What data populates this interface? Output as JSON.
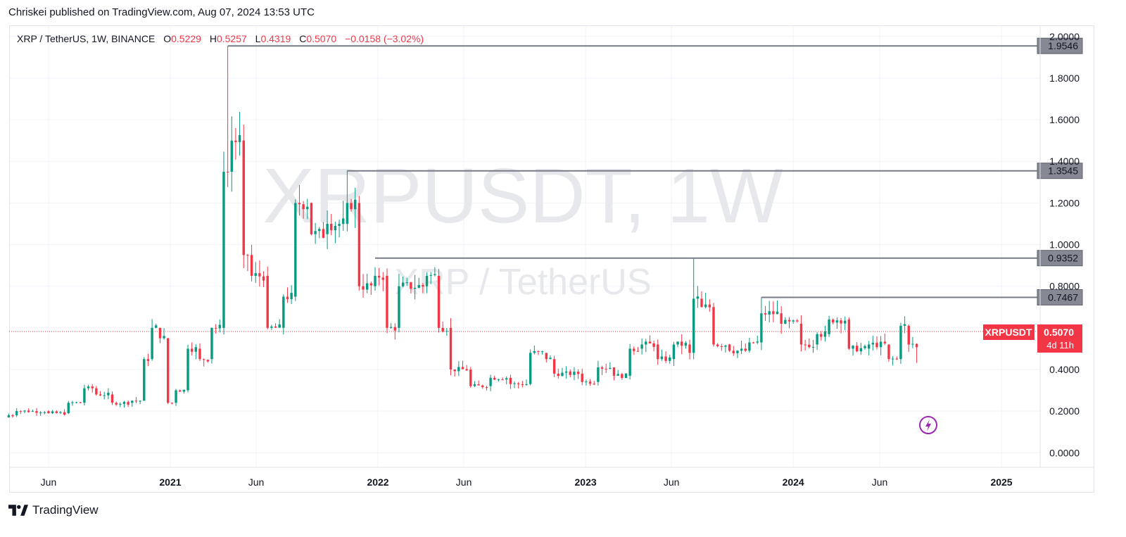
{
  "header": {
    "publisher_line": "Chriskei published on TradingView.com, Aug 07, 2024 13:53 UTC"
  },
  "legend": {
    "symbol": "XRP / TetherUS, 1W, BINANCE",
    "open_label": "O",
    "open_value": "0.5229",
    "high_label": "H",
    "high_value": "0.5257",
    "low_label": "L",
    "low_value": "0.4319",
    "close_label": "C",
    "close_value": "0.5070",
    "change": "−0.0158 (−3.02%)"
  },
  "watermark": {
    "main": "XRPUSDT, 1W",
    "sub": "XRP / TetherUS"
  },
  "price_tag": {
    "symbol": "XRPUSDT",
    "price": "0.5070",
    "countdown": "4d 11h"
  },
  "footer": {
    "brand": "TradingView"
  },
  "colors": {
    "up": "#089981",
    "down": "#f23645",
    "level_line": "#787b86",
    "level_label_bg": "#868993",
    "grid": "#f0f3fa",
    "watermark": "#e6e8ec"
  },
  "icons": [
    "tradingview-logo-icon",
    "lightning-icon"
  ],
  "chart_data": {
    "type": "candlestick",
    "title": "XRP / TetherUS, 1W, BINANCE",
    "y_axis": {
      "ticks": [
        "0.0000",
        "0.2000",
        "0.4000",
        "0.6000",
        "0.8000",
        "1.0000",
        "1.2000",
        "1.4000",
        "1.6000",
        "1.8000",
        "2.0000"
      ],
      "range": [
        -0.07,
        2.05
      ],
      "position": "right"
    },
    "x_axis": {
      "ticks": [
        {
          "label": "Jun",
          "date": "2020-06-01"
        },
        {
          "label": "2021",
          "date": "2021-01-01",
          "bold": true
        },
        {
          "label": "Jun",
          "date": "2021-06-01"
        },
        {
          "label": "2022",
          "date": "2022-01-01",
          "bold": true
        },
        {
          "label": "Jun",
          "date": "2022-06-01"
        },
        {
          "label": "2023",
          "date": "2023-01-01",
          "bold": true
        },
        {
          "label": "Jun",
          "date": "2023-06-01"
        },
        {
          "label": "2024",
          "date": "2024-01-01",
          "bold": true
        },
        {
          "label": "Jun",
          "date": "2024-06-01"
        },
        {
          "label": "2025",
          "date": "2025-01-01",
          "bold": true
        }
      ],
      "range": [
        "2020-03-25",
        "2025-03-10"
      ]
    },
    "horizontal_levels": [
      {
        "value": 1.9546,
        "label": "1.9546",
        "start_date": "2021-04-12"
      },
      {
        "value": 1.3545,
        "label": "1.3545",
        "start_date": "2021-11-08"
      },
      {
        "value": 0.9352,
        "label": "0.9352",
        "start_date": "2021-12-27"
      },
      {
        "value": 0.7467,
        "label": "0.7467",
        "start_date": "2023-11-06"
      }
    ],
    "current_price": 0.507,
    "grid": true,
    "series": [
      {
        "weekly_ohlc_knots": [
          {
            "date": "2020-03-23",
            "open": 0.17,
            "close": 0.18
          },
          {
            "date": "2020-04-06",
            "open": 0.18,
            "close": 0.2
          },
          {
            "date": "2020-05-04",
            "open": 0.2,
            "close": 0.2
          },
          {
            "date": "2020-06-01",
            "open": 0.2,
            "close": 0.19
          },
          {
            "date": "2020-07-06",
            "open": 0.19,
            "close": 0.24
          },
          {
            "date": "2020-08-03",
            "open": 0.24,
            "close": 0.31
          },
          {
            "date": "2020-08-24",
            "open": 0.31,
            "close": 0.28
          },
          {
            "date": "2020-09-21",
            "open": 0.28,
            "close": 0.24
          },
          {
            "date": "2020-10-26",
            "open": 0.24,
            "close": 0.25
          },
          {
            "date": "2020-11-16",
            "open": 0.25,
            "close": 0.45
          },
          {
            "date": "2020-11-30",
            "open": 0.45,
            "close": 0.6
          },
          {
            "date": "2020-12-14",
            "open": 0.6,
            "close": 0.55
          },
          {
            "date": "2020-12-28",
            "open": 0.55,
            "close": 0.24
          },
          {
            "date": "2021-01-11",
            "open": 0.24,
            "close": 0.3
          },
          {
            "date": "2021-02-01",
            "open": 0.3,
            "close": 0.5
          },
          {
            "date": "2021-02-22",
            "open": 0.5,
            "close": 0.45
          },
          {
            "date": "2021-03-15",
            "open": 0.45,
            "close": 0.6
          },
          {
            "date": "2021-04-05",
            "open": 0.6,
            "close": 1.35
          },
          {
            "date": "2021-04-19",
            "open": 1.35,
            "close": 1.5
          },
          {
            "date": "2021-05-10",
            "open": 1.5,
            "close": 0.95
          },
          {
            "date": "2021-05-24",
            "open": 0.95,
            "close": 0.85
          },
          {
            "date": "2021-06-21",
            "open": 0.85,
            "close": 0.6
          },
          {
            "date": "2021-07-19",
            "open": 0.6,
            "close": 0.75
          },
          {
            "date": "2021-08-09",
            "open": 0.75,
            "close": 1.2
          },
          {
            "date": "2021-09-06",
            "open": 1.2,
            "close": 1.05
          },
          {
            "date": "2021-10-04",
            "open": 1.05,
            "close": 1.1
          },
          {
            "date": "2021-11-08",
            "open": 1.1,
            "close": 1.2
          },
          {
            "date": "2021-11-29",
            "open": 1.2,
            "close": 0.8
          },
          {
            "date": "2021-12-27",
            "open": 0.8,
            "close": 0.85
          },
          {
            "date": "2022-01-17",
            "open": 0.85,
            "close": 0.6
          },
          {
            "date": "2022-02-07",
            "open": 0.6,
            "close": 0.8
          },
          {
            "date": "2022-03-28",
            "open": 0.8,
            "close": 0.85
          },
          {
            "date": "2022-04-18",
            "open": 0.85,
            "close": 0.6
          },
          {
            "date": "2022-05-09",
            "open": 0.6,
            "close": 0.4
          },
          {
            "date": "2022-06-13",
            "open": 0.4,
            "close": 0.32
          },
          {
            "date": "2022-07-18",
            "open": 0.32,
            "close": 0.36
          },
          {
            "date": "2022-08-22",
            "open": 0.36,
            "close": 0.33
          },
          {
            "date": "2022-09-26",
            "open": 0.33,
            "close": 0.48
          },
          {
            "date": "2022-10-24",
            "open": 0.48,
            "close": 0.45
          },
          {
            "date": "2022-11-07",
            "open": 0.45,
            "close": 0.38
          },
          {
            "date": "2022-12-26",
            "open": 0.38,
            "close": 0.34
          },
          {
            "date": "2023-01-23",
            "open": 0.34,
            "close": 0.41
          },
          {
            "date": "2023-02-20",
            "open": 0.41,
            "close": 0.37
          },
          {
            "date": "2023-03-20",
            "open": 0.37,
            "close": 0.5
          },
          {
            "date": "2023-04-10",
            "open": 0.5,
            "close": 0.52
          },
          {
            "date": "2023-05-08",
            "open": 0.52,
            "close": 0.45
          },
          {
            "date": "2023-06-05",
            "open": 0.45,
            "close": 0.52
          },
          {
            "date": "2023-07-03",
            "open": 0.52,
            "close": 0.48
          },
          {
            "date": "2023-07-10",
            "open": 0.48,
            "close": 0.74
          },
          {
            "date": "2023-07-24",
            "open": 0.74,
            "close": 0.7
          },
          {
            "date": "2023-08-14",
            "open": 0.7,
            "close": 0.52
          },
          {
            "date": "2023-09-11",
            "open": 0.52,
            "close": 0.49
          },
          {
            "date": "2023-10-16",
            "open": 0.49,
            "close": 0.53
          },
          {
            "date": "2023-11-06",
            "open": 0.53,
            "close": 0.67
          },
          {
            "date": "2023-12-11",
            "open": 0.67,
            "close": 0.62
          },
          {
            "date": "2024-01-15",
            "open": 0.62,
            "close": 0.52
          },
          {
            "date": "2024-02-12",
            "open": 0.52,
            "close": 0.57
          },
          {
            "date": "2024-03-04",
            "open": 0.57,
            "close": 0.64
          },
          {
            "date": "2024-04-08",
            "open": 0.64,
            "close": 0.5
          },
          {
            "date": "2024-05-13",
            "open": 0.5,
            "close": 0.52
          },
          {
            "date": "2024-06-17",
            "open": 0.52,
            "close": 0.45
          },
          {
            "date": "2024-07-08",
            "open": 0.45,
            "close": 0.61
          },
          {
            "date": "2024-07-22",
            "open": 0.61,
            "close": 0.52
          },
          {
            "date": "2024-08-05",
            "open": 0.5229,
            "close": 0.507
          }
        ],
        "marked_highs": [
          {
            "date": "2021-04-12",
            "high": 1.9546
          },
          {
            "date": "2021-11-08",
            "high": 1.3545
          },
          {
            "date": "2023-07-10",
            "high": 0.9352
          },
          {
            "date": "2023-11-06",
            "high": 0.7467
          }
        ],
        "last_candle": {
          "date": "2024-08-05",
          "open": 0.5229,
          "high": 0.5257,
          "low": 0.4319,
          "close": 0.507
        }
      }
    ]
  }
}
